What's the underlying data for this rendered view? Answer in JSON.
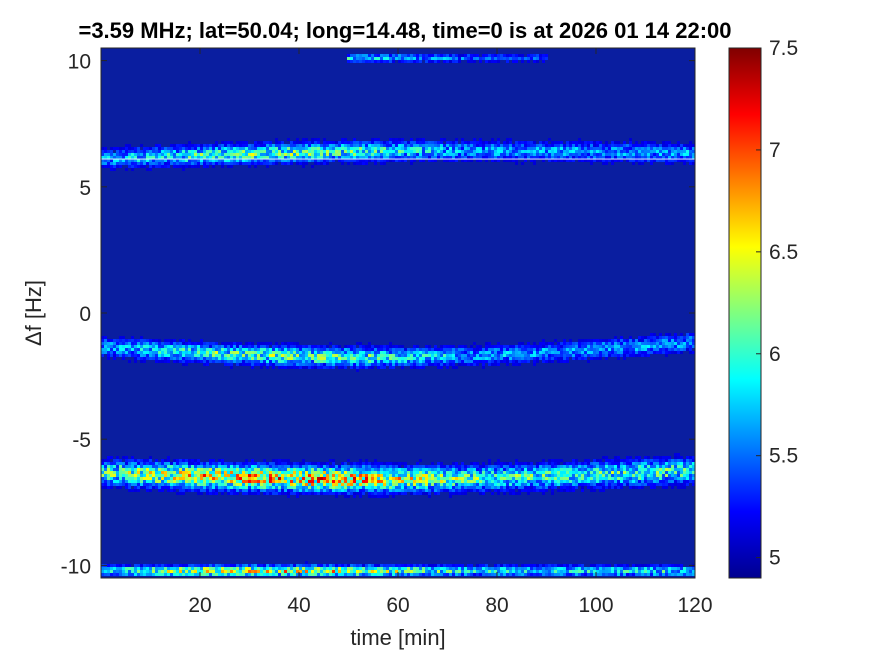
{
  "chart_data": {
    "type": "heatmap",
    "title": "=3.59 MHz;  lat=50.04; long=14.48, time=0 is at 2026 01 14 22:00",
    "xlabel": "time [min]",
    "ylabel": "Δf [Hz]",
    "xlim": [
      0,
      120
    ],
    "ylim": [
      -10.5,
      10.5
    ],
    "xticks": [
      20,
      40,
      60,
      80,
      100,
      120
    ],
    "xtick_labels": [
      "20",
      "40",
      "60",
      "80",
      "100",
      "120"
    ],
    "yticks": [
      10,
      5,
      0,
      -5,
      -10
    ],
    "ytick_labels": [
      "10",
      "5",
      "0",
      "-5",
      "-10"
    ],
    "colorbar": {
      "range": [
        4.9,
        7.5
      ],
      "ticks": [
        7.5,
        7,
        6.5,
        6,
        5.5,
        5
      ],
      "tick_labels": [
        "7.5",
        "7",
        "6.5",
        "6",
        "5.5",
        "5"
      ],
      "colormap": "jet"
    },
    "background_value": 4.95,
    "bands": [
      {
        "df_start": 10.1,
        "df_end": 10.1,
        "df_mid_shift": 0.0,
        "strength": 0.35,
        "width": 0.15,
        "t_start": 50,
        "t_end": 90
      },
      {
        "df_start": 6.1,
        "df_end": 6.3,
        "df_mid_shift": 0.2,
        "strength": 0.45,
        "width": 0.35,
        "t_start": 0,
        "t_end": 120
      },
      {
        "df_start": -1.4,
        "df_end": -1.2,
        "df_mid_shift": -0.5,
        "strength": 0.45,
        "width": 0.35,
        "t_start": 0,
        "t_end": 120
      },
      {
        "df_start": -6.4,
        "df_end": -6.3,
        "df_mid_shift": -0.3,
        "strength": 0.7,
        "width": 0.45,
        "t_start": 0,
        "t_end": 120
      },
      {
        "df_start": -10.3,
        "df_end": -10.3,
        "df_mid_shift": 0.0,
        "strength": 0.6,
        "width": 0.2,
        "t_start": 0,
        "t_end": 120
      }
    ],
    "carrier_line_df": 6.1
  },
  "colors": {
    "background_dark_blue": "#0a1ea0",
    "axis": "#262626"
  }
}
